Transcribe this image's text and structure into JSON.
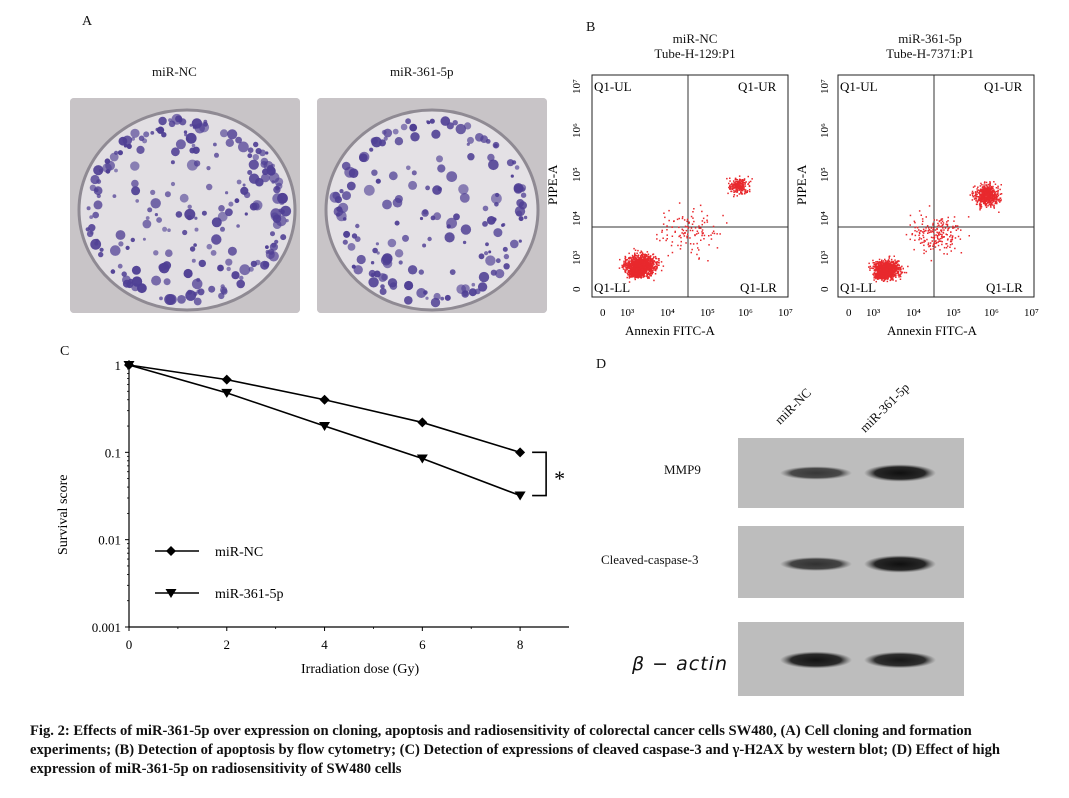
{
  "panelA": {
    "letter": "A",
    "left_label": "miR-NC",
    "right_label": "miR-361-5p"
  },
  "panelB": {
    "letter": "B",
    "left_title_1": "miR-NC",
    "left_title_2": "Tube-H-129:P1",
    "right_title_1": "miR-361-5p",
    "right_title_2": "Tube-H-7371:P1",
    "quadrants": [
      "Q1-UL",
      "Q1-UR",
      "Q1-LL",
      "Q1-LR"
    ],
    "y_label": "PIPE-A",
    "x_label": "Annexin FITC-A",
    "y_ticks": [
      "0",
      "10³",
      "10⁴",
      "10⁵",
      "10⁶",
      "10⁷"
    ],
    "x_ticks": [
      "0",
      "10³",
      "10⁴",
      "10⁵",
      "10⁶",
      "10⁷"
    ]
  },
  "panelC": {
    "letter": "C",
    "significance": "*"
  },
  "panelD": {
    "letter": "D",
    "lanes": [
      "miR-NC",
      "miR-361-5p"
    ],
    "rows": [
      "MMP9",
      "Cleaved-caspase-3",
      "β − actin"
    ],
    "band_intensity": [
      [
        0.55,
        0.95
      ],
      [
        0.6,
        0.95
      ],
      [
        0.9,
        0.85
      ]
    ]
  },
  "chart_data": {
    "type": "line",
    "xlabel": "Irradiation dose (Gy)",
    "ylabel": "Survival score",
    "x": [
      0,
      2,
      4,
      6,
      8
    ],
    "yscale": "log",
    "ylim": [
      0.001,
      1
    ],
    "xlim": [
      0,
      9
    ],
    "x_ticks": [
      "0",
      "2",
      "4",
      "6",
      "8"
    ],
    "y_ticks": [
      "0.001",
      "0.01",
      "0.1",
      "1"
    ],
    "series": [
      {
        "name": "miR-NC",
        "marker": "diamond",
        "values": [
          1,
          0.68,
          0.4,
          0.22,
          0.1
        ]
      },
      {
        "name": "miR-361-5p",
        "marker": "triangle-down",
        "values": [
          1,
          0.48,
          0.2,
          0.085,
          0.032
        ]
      }
    ],
    "legend": "lower-left",
    "grid": false
  },
  "caption": "Fig. 2: Effects of miR-361-5p over expression on cloning, apoptosis and radiosensitivity of colorectal cancer cells SW480, (A) Cell cloning and formation experiments; (B) Detection of apoptosis by flow cytometry; (C) Detection of expressions of cleaved caspase-3 and γ-H2AX by western blot; (D) Effect of high expression of miR-361-5p on radiosensitivity of SW480 cells"
}
